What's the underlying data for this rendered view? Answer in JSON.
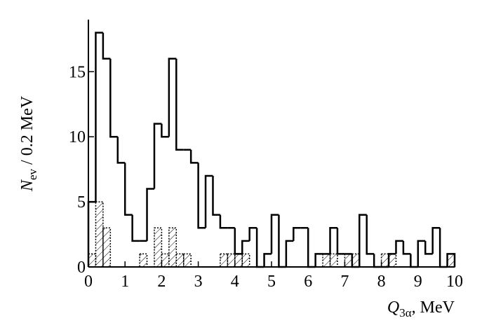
{
  "chart_data": {
    "type": "histogram",
    "x_label": {
      "symbol": "Q",
      "subscript": "3α",
      "rest": ", MeV"
    },
    "y_label": {
      "symbol": "N",
      "subscript": "ev",
      "rest": " / 0.2 MeV"
    },
    "bins": [
      0,
      0.2,
      0.4,
      0.6,
      0.8,
      1,
      1.2,
      1.4,
      1.6,
      1.8,
      2,
      2.2,
      2.4,
      2.6,
      2.8,
      3,
      3.2,
      3.4,
      3.6,
      3.8,
      4,
      4.2,
      4.4,
      4.6,
      4.8,
      5,
      5.2,
      5.4,
      5.6,
      5.8,
      6,
      6.2,
      6.4,
      6.6,
      6.8,
      7,
      7.2,
      7.4,
      7.6,
      7.8,
      8,
      8.2,
      8.4,
      8.6,
      8.8,
      9,
      9.2,
      9.4,
      9.6,
      9.8,
      10
    ],
    "series": [
      {
        "color": "#000000",
        "values": [
          5,
          18,
          16,
          10,
          8,
          4,
          2,
          2,
          6,
          11,
          10,
          16,
          9,
          9,
          8,
          3,
          7,
          4,
          3,
          3,
          1,
          2,
          3,
          0,
          1,
          4,
          0,
          2,
          3,
          3,
          0,
          1,
          1,
          3,
          1,
          1,
          0,
          4,
          1,
          0,
          0,
          1,
          2,
          1,
          0,
          2,
          1,
          3,
          0,
          1
        ]
      },
      {
        "color": "#000000",
        "values": [
          1,
          5,
          3,
          0,
          0,
          0,
          0,
          1,
          0,
          3,
          1,
          3,
          1,
          1,
          0,
          0,
          0,
          0,
          1,
          1,
          1,
          1,
          0,
          0,
          0,
          0,
          0,
          0,
          0,
          0,
          0,
          0,
          1,
          1,
          0,
          1,
          1,
          0,
          0,
          0,
          1,
          1,
          0,
          0,
          0,
          0,
          0,
          0,
          0,
          1
        ]
      }
    ],
    "xlim": [
      0,
      10
    ],
    "ylim": [
      0,
      19
    ],
    "xticks": [
      0,
      1,
      2,
      3,
      4,
      5,
      6,
      7,
      8,
      9,
      10
    ],
    "yticks": [
      0,
      5,
      10,
      15
    ]
  }
}
